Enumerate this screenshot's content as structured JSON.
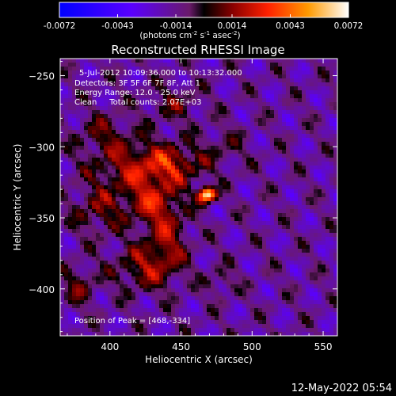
{
  "chart_data": {
    "type": "heatmap",
    "title": "Reconstructed RHESSI Image",
    "xlabel": "Heliocentric X (arcsec)",
    "ylabel": "Heliocentric Y (arcsec)",
    "xlim": [
      365,
      560
    ],
    "ylim": [
      -433,
      -238
    ],
    "x_ticks": [
      400,
      450,
      500,
      550
    ],
    "y_ticks": [
      -250,
      -300,
      -350,
      -400
    ],
    "colorbar": {
      "ticks": [
        "-0.0072",
        "-0.0043",
        "-0.0014",
        "0.0014",
        "0.0043",
        "0.0072"
      ],
      "range": [
        -0.0072,
        0.0072
      ],
      "unit_label": "(photons cm",
      "unit_exp1": "-2",
      "unit_mid": " s",
      "unit_exp2": "-1",
      "unit_mid2": " asec",
      "unit_exp3": "-2",
      "unit_end": ")"
    },
    "annotations": [
      "5-Jul-2012 10:09:36.000 to 10:13:32.000",
      "Detectors: 3F 5F 6F 7F 8F, Att 1",
      "Energy Range: 12.0 - 25.0 keV",
      "Clean     Total counts: 2.07E+03"
    ],
    "peak_label": "Position of Peak = [468,-334]",
    "peak": {
      "x": 468,
      "y": -334,
      "value": 0.0072
    },
    "emission_blobs": [
      {
        "x": 420,
        "y": -315,
        "sx": 32,
        "sy": 20,
        "amp": 0.0036
      },
      {
        "x": 445,
        "y": -312,
        "sx": 20,
        "sy": 12,
        "amp": 0.0028
      },
      {
        "x": 430,
        "y": -340,
        "sx": 18,
        "sy": 16,
        "amp": 0.0034
      },
      {
        "x": 440,
        "y": -365,
        "sx": 14,
        "sy": 22,
        "amp": 0.003
      },
      {
        "x": 425,
        "y": -385,
        "sx": 22,
        "sy": 16,
        "amp": 0.0032
      },
      {
        "x": 392,
        "y": -345,
        "sx": 18,
        "sy": 16,
        "amp": 0.0025
      },
      {
        "x": 395,
        "y": -290,
        "sx": 18,
        "sy": 14,
        "amp": 0.002
      },
      {
        "x": 445,
        "y": -270,
        "sx": 18,
        "sy": 12,
        "amp": 0.002
      },
      {
        "x": 480,
        "y": -300,
        "sx": 16,
        "sy": 14,
        "amp": 0.0014
      },
      {
        "x": 378,
        "y": -398,
        "sx": 12,
        "sy": 14,
        "amp": 0.0024
      },
      {
        "x": 478,
        "y": -395,
        "sx": 10,
        "sy": 10,
        "amp": 0.0016
      }
    ]
  },
  "footer": {
    "timestamp": "12-May-2022 05:54"
  }
}
